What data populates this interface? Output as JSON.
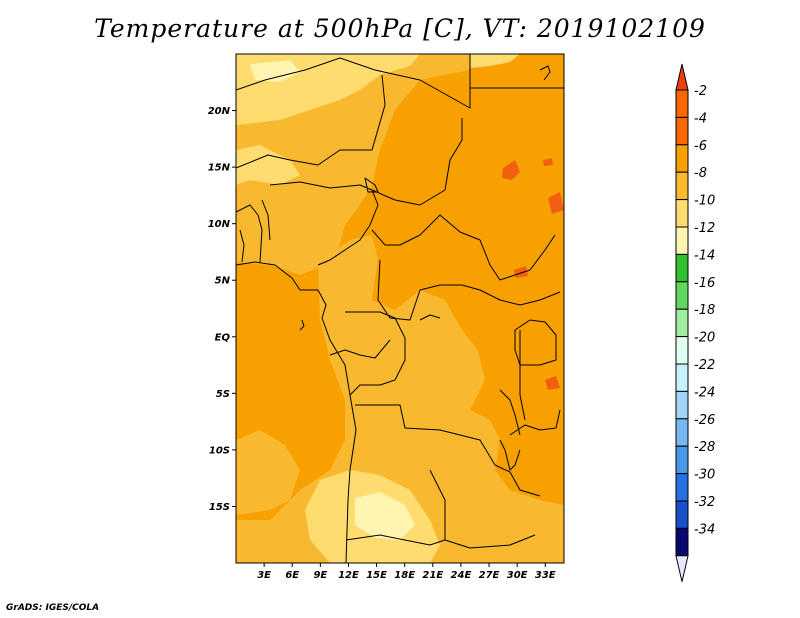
{
  "title": "Temperature at 500hPa [C], VT: 2019102109",
  "credit": "GrADS: IGES/COLA",
  "map": {
    "lon_range": [
      0,
      35
    ],
    "lat_range": [
      -20,
      25
    ],
    "lat_ticks": [
      {
        "lat": 20,
        "label": "20N"
      },
      {
        "lat": 15,
        "label": "15N"
      },
      {
        "lat": 10,
        "label": "10N"
      },
      {
        "lat": 5,
        "label": "5N"
      },
      {
        "lat": 0,
        "label": "EQ"
      },
      {
        "lat": -5,
        "label": "5S"
      },
      {
        "lat": -10,
        "label": "10S"
      },
      {
        "lat": -15,
        "label": "15S"
      }
    ],
    "lon_ticks": [
      {
        "lon": 3,
        "label": "3E"
      },
      {
        "lon": 6,
        "label": "6E"
      },
      {
        "lon": 9,
        "label": "9E"
      },
      {
        "lon": 12,
        "label": "12E"
      },
      {
        "lon": 15,
        "label": "15E"
      },
      {
        "lon": 18,
        "label": "18E"
      },
      {
        "lon": 21,
        "label": "21E"
      },
      {
        "lon": 24,
        "label": "24E"
      },
      {
        "lon": 27,
        "label": "27E"
      },
      {
        "lon": 30,
        "label": "30E"
      },
      {
        "lon": 33,
        "label": "33E"
      }
    ],
    "fill_colors": {
      "minus4_to_minus2": "#f06010",
      "minus6_to_minus4": "#f8a000",
      "minus8_to_minus6": "#f8b830",
      "minus10_to_minus8": "#ffdc70",
      "minus12_to_minus10": "#fff4b0",
      "border": "#000000"
    }
  },
  "colorbar": {
    "bins": [
      {
        "label": "-2",
        "color": "#f04010"
      },
      {
        "label": "-4",
        "color": "#f86800"
      },
      {
        "label": "-6",
        "color": "#f8a000"
      },
      {
        "label": "-8",
        "color": "#f8b830"
      },
      {
        "label": "-10",
        "color": "#ffdc70"
      },
      {
        "label": "-12",
        "color": "#fff4b0"
      },
      {
        "label": "-14",
        "color": "#30c030"
      },
      {
        "label": "-16",
        "color": "#60d860"
      },
      {
        "label": "-18",
        "color": "#a0eca0"
      },
      {
        "label": "-20",
        "color": "#e0fff0"
      },
      {
        "label": "-22",
        "color": "#c8f0ff"
      },
      {
        "label": "-24",
        "color": "#a0d4f8"
      },
      {
        "label": "-26",
        "color": "#78b8f0"
      },
      {
        "label": "-28",
        "color": "#4898e8"
      },
      {
        "label": "-30",
        "color": "#2870e0"
      },
      {
        "label": "-32",
        "color": "#1850c8"
      },
      {
        "label": "-34",
        "color": "#1030a0"
      }
    ],
    "bottom_color": "#080870",
    "below_color": "#e8e8ff",
    "extra_label": "-34"
  }
}
